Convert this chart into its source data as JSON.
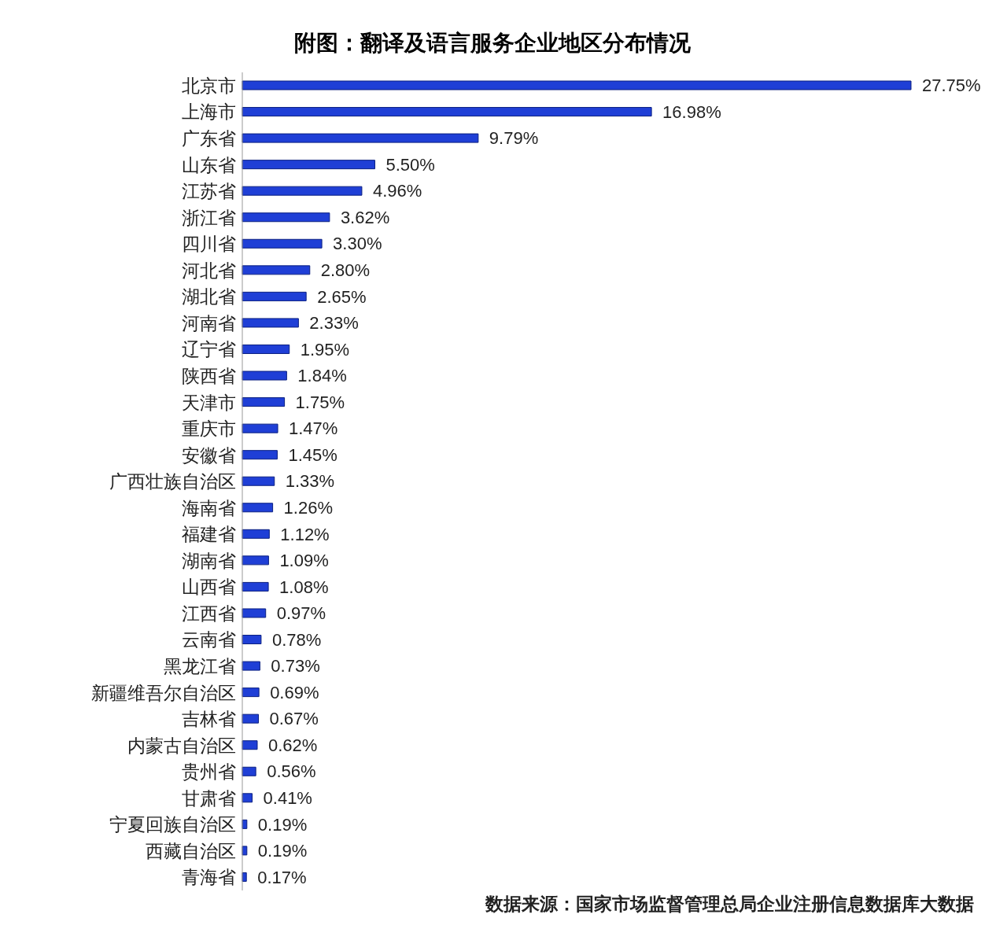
{
  "chart_data": {
    "type": "bar",
    "orientation": "horizontal",
    "title": "附图：翻译及语言服务企业地区分布情况",
    "categories": [
      "北京市",
      "上海市",
      "广东省",
      "山东省",
      "江苏省",
      "浙江省",
      "四川省",
      "河北省",
      "湖北省",
      "河南省",
      "辽宁省",
      "陕西省",
      "天津市",
      "重庆市",
      "安徽省",
      "广西壮族自治区",
      "海南省",
      "福建省",
      "湖南省",
      "山西省",
      "江西省",
      "云南省",
      "黑龙江省",
      "新疆维吾尔自治区",
      "吉林省",
      "内蒙古自治区",
      "贵州省",
      "甘肃省",
      "宁夏回族自治区",
      "西藏自治区",
      "青海省"
    ],
    "values": [
      27.75,
      16.98,
      9.79,
      5.5,
      4.96,
      3.62,
      3.3,
      2.8,
      2.65,
      2.33,
      1.95,
      1.84,
      1.75,
      1.47,
      1.45,
      1.33,
      1.26,
      1.12,
      1.09,
      1.08,
      0.97,
      0.78,
      0.73,
      0.69,
      0.67,
      0.62,
      0.56,
      0.41,
      0.19,
      0.19,
      0.17
    ],
    "value_labels": [
      "27.75%",
      "16.98%",
      "9.79%",
      "5.50%",
      "4.96%",
      "3.62%",
      "3.30%",
      "2.80%",
      "2.65%",
      "2.33%",
      "1.95%",
      "1.84%",
      "1.75%",
      "1.47%",
      "1.45%",
      "1.33%",
      "1.26%",
      "1.12%",
      "1.09%",
      "1.08%",
      "0.97%",
      "0.78%",
      "0.73%",
      "0.69%",
      "0.67%",
      "0.62%",
      "0.56%",
      "0.41%",
      "0.19%",
      "0.19%",
      "0.17%"
    ],
    "color": "#1f3fd6",
    "annotations": [
      "数据来源：国家市场监督管理总局企业注册信息数据库大数据"
    ],
    "grid": false,
    "legend": false
  }
}
